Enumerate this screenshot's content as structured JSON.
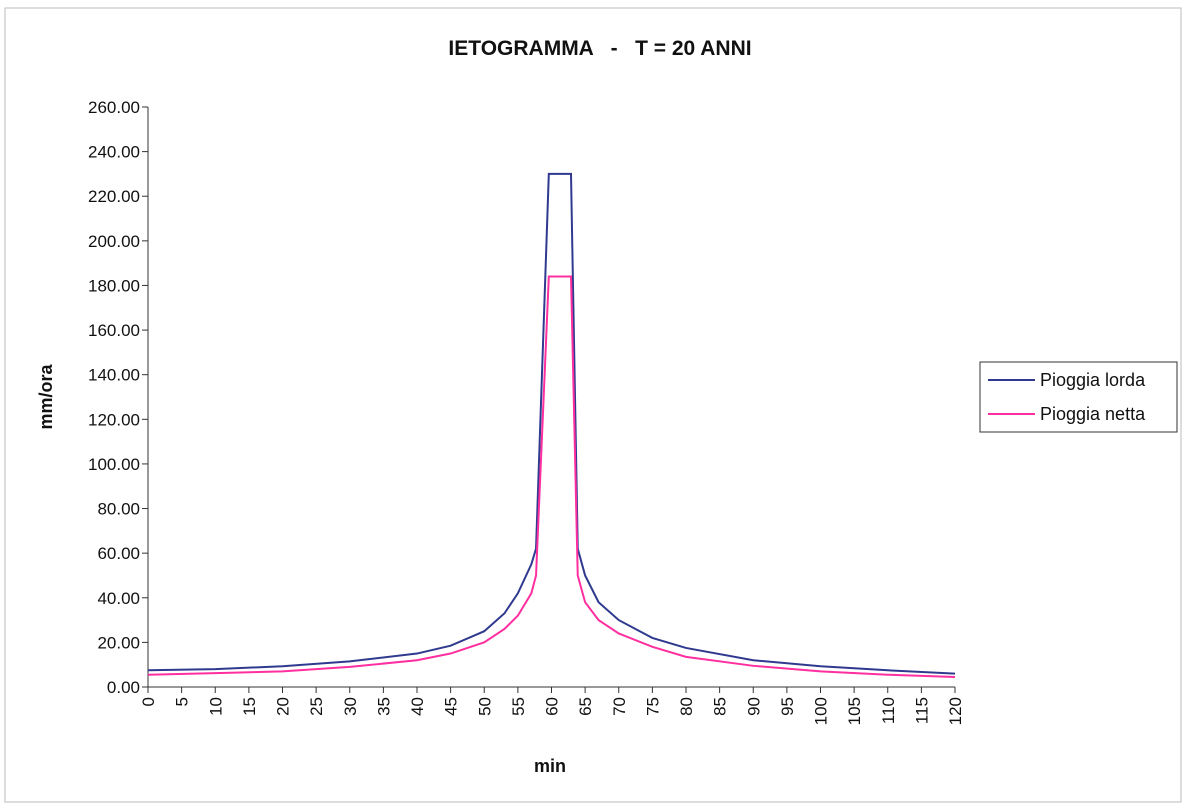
{
  "chart_data": {
    "type": "line",
    "title": "IETOGRAMMA   -   T = 20 ANNI",
    "x_label": "min",
    "y_label": "mm/ora",
    "x": [
      0,
      10,
      20,
      30,
      40,
      45,
      50,
      53,
      55,
      57,
      57.7,
      59.6,
      62.9,
      63.9,
      65,
      67,
      70,
      75,
      80,
      90,
      100,
      110,
      120
    ],
    "series": [
      {
        "name": "Pioggia lorda",
        "color": "#2f3a8f",
        "values": [
          7.5,
          8,
          9.3,
          11.5,
          15,
          18.5,
          25,
          33,
          42,
          55,
          62,
          230,
          230,
          62,
          50,
          38,
          30,
          22,
          17.5,
          12,
          9.3,
          7.5,
          6
        ]
      },
      {
        "name": "Pioggia netta",
        "color": "#ff2fa0",
        "values": [
          5.5,
          6.2,
          7,
          9,
          12,
          15,
          20,
          26,
          32,
          42,
          50,
          184,
          184,
          50,
          38,
          30,
          24,
          18,
          13.5,
          9.5,
          7,
          5.5,
          4.5
        ]
      }
    ],
    "xlim": [
      0,
      120
    ],
    "xticks": [
      0,
      5,
      10,
      15,
      20,
      25,
      30,
      35,
      40,
      45,
      50,
      55,
      60,
      65,
      70,
      75,
      80,
      85,
      90,
      95,
      100,
      105,
      110,
      115,
      120
    ],
    "ylim": [
      0,
      260
    ],
    "yticks": [
      {
        "value": 0,
        "label": "0.00"
      },
      {
        "value": 20,
        "label": "20.00"
      },
      {
        "value": 40,
        "label": "40.00"
      },
      {
        "value": 60,
        "label": "60.00"
      },
      {
        "value": 80,
        "label": "80.00"
      },
      {
        "value": 100,
        "label": "100.00"
      },
      {
        "value": 120,
        "label": "120.00"
      },
      {
        "value": 140,
        "label": "140.00"
      },
      {
        "value": 160,
        "label": "160.00"
      },
      {
        "value": 180,
        "label": "180.00"
      },
      {
        "value": 200,
        "label": "200.00"
      },
      {
        "value": 220,
        "label": "220.00"
      },
      {
        "value": 240,
        "label": "240.00"
      },
      {
        "value": 260,
        "label": "260.00"
      }
    ],
    "legend": "right"
  }
}
